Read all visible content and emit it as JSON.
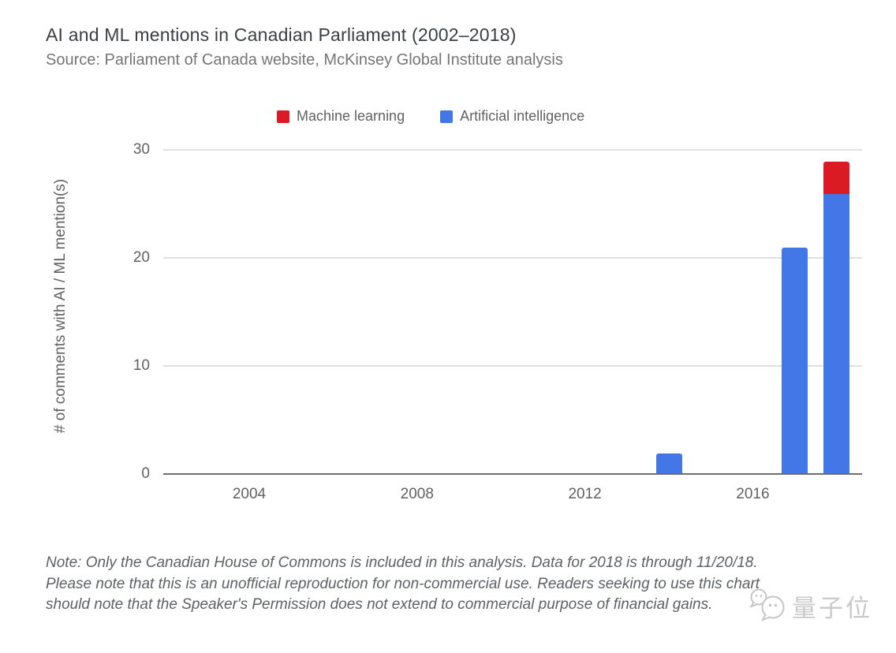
{
  "header": {
    "title": "AI and ML mentions in Canadian Parliament (2002–2018)",
    "source": "Source: Parliament of Canada website, McKinsey Global Institute analysis"
  },
  "legend": [
    {
      "label": "Machine learning",
      "color": "#db1b23"
    },
    {
      "label": "Artificial intelligence",
      "color": "#4377e8"
    }
  ],
  "chart_data": {
    "type": "bar",
    "stacked": true,
    "title": "AI and ML mentions in Canadian Parliament (2002–2018)",
    "xlabel": "",
    "ylabel": "# of comments with AI / ML mention(s)",
    "categories": [
      2002,
      2003,
      2004,
      2005,
      2006,
      2007,
      2008,
      2009,
      2010,
      2011,
      2012,
      2013,
      2014,
      2015,
      2016,
      2017,
      2018
    ],
    "series": [
      {
        "name": "Artificial intelligence",
        "color": "#4377e8",
        "values": [
          0,
          0,
          0,
          0,
          0,
          0,
          0,
          0,
          0,
          0,
          0,
          0,
          2,
          0,
          0,
          21,
          26
        ]
      },
      {
        "name": "Machine learning",
        "color": "#db1b23",
        "values": [
          0,
          0,
          0,
          0,
          0,
          0,
          0,
          0,
          0,
          0,
          0,
          0,
          0,
          0,
          0,
          0,
          3
        ]
      }
    ],
    "x_ticks": [
      2004,
      2008,
      2012,
      2016
    ],
    "y_ticks": [
      0,
      10,
      20,
      30
    ],
    "ylim": [
      0,
      30
    ],
    "xlim": [
      2002,
      2018.7
    ],
    "grid": true,
    "legend_position": "top",
    "gridline_color": "#e0e0e0",
    "axis_line_color": "#6e6e6e",
    "tick_label_color": "#616161"
  },
  "note": {
    "lines": [
      "Note: Only the Canadian House of Commons is included in this analysis. Data for 2018 is through 11/20/18.",
      "Please note that this is an unofficial reproduction for non-commercial use. Readers seeking to use this chart",
      "should note that the Speaker's Permission does not extend to commercial purpose of financial gains."
    ]
  },
  "watermark": {
    "text": "量子位",
    "icon": "qbitai-chat-bubbles-logo",
    "color": "#c9c9c9"
  }
}
